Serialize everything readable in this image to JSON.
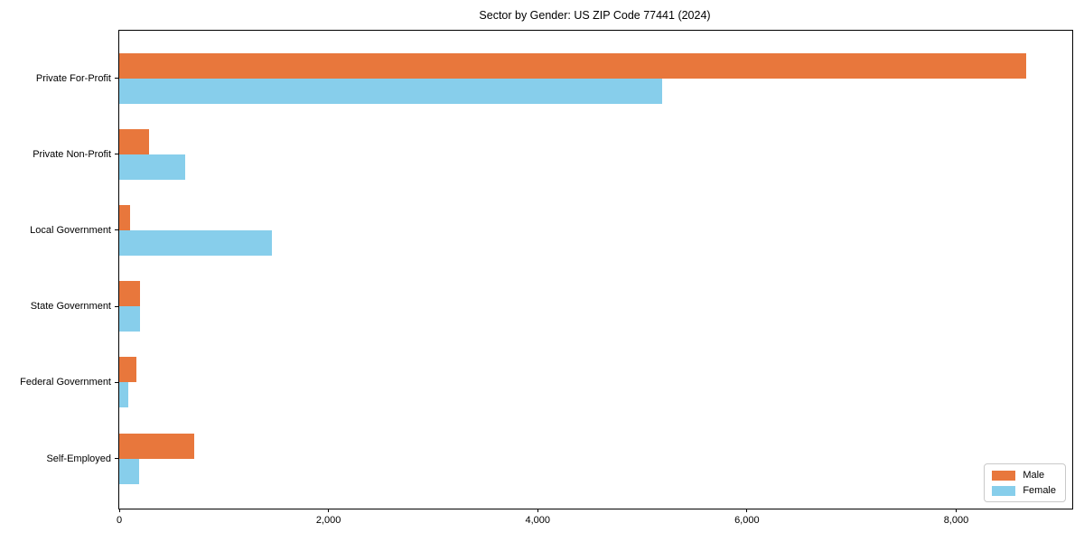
{
  "title": "Sector by Gender: US ZIP Code 77441 (2024)",
  "chart_data": {
    "type": "bar",
    "orientation": "horizontal",
    "title": "Sector by Gender: US ZIP Code 77441 (2024)",
    "categories": [
      "Private For-Profit",
      "Private Non-Profit",
      "Local Government",
      "State Government",
      "Federal Government",
      "Self-Employed"
    ],
    "series": [
      {
        "name": "Male",
        "color": "#e8773c",
        "values": [
          8670,
          285,
          105,
          200,
          160,
          720
        ]
      },
      {
        "name": "Female",
        "color": "#87ceeb",
        "values": [
          5190,
          630,
          1460,
          200,
          90,
          190
        ]
      }
    ],
    "xlim": [
      0,
      9110
    ],
    "xticks": [
      0,
      2000,
      4000,
      6000,
      8000
    ],
    "xtick_labels": [
      "0",
      "2,000",
      "4,000",
      "6,000",
      "8,000"
    ],
    "grid": false,
    "legend_position": "lower right",
    "axis_color": "#000000",
    "background_color": "#ffffff"
  }
}
